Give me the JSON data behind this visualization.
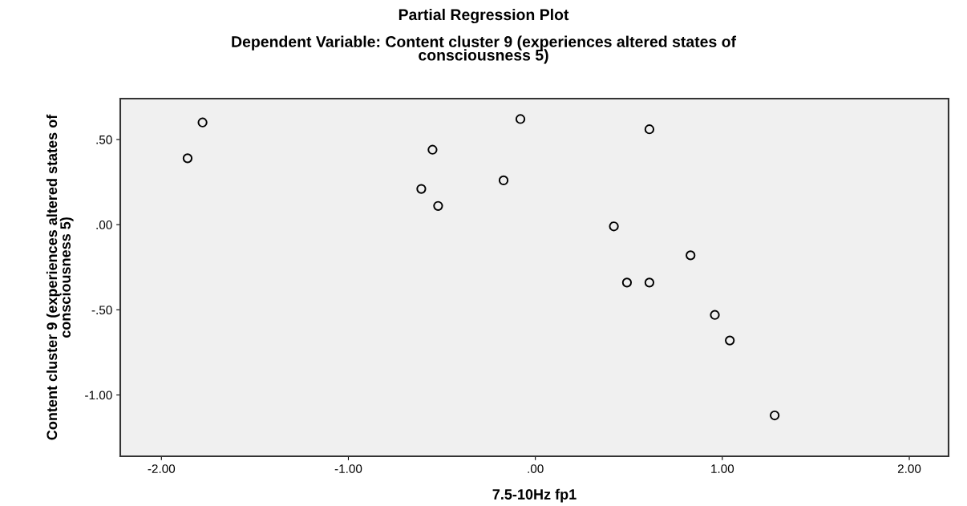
{
  "chart_data": {
    "type": "scatter",
    "title": "Partial Regression Plot",
    "subtitle": "Dependent Variable: Content cluster 9 (experiences altered states of\nconsciousness 5)",
    "xlabel": "7.5-10Hz fp1",
    "ylabel": "Content cluster 9 (experiences altered states of\nconsciousness 5)",
    "x": [
      -1.78,
      -1.86,
      -0.55,
      -0.61,
      -0.52,
      -0.17,
      -0.08,
      0.61,
      0.42,
      0.83,
      0.49,
      0.61,
      0.96,
      1.04,
      1.28
    ],
    "values": [
      0.6,
      0.39,
      0.44,
      0.21,
      0.11,
      0.26,
      0.62,
      0.56,
      -0.01,
      -0.18,
      -0.34,
      -0.34,
      -0.53,
      -0.68,
      -1.12
    ],
    "color": "#000000",
    "marker": "circle",
    "xlim": [
      -2.22,
      2.21
    ],
    "ylim": [
      -1.36,
      0.74
    ],
    "xticks": [
      {
        "value": -2,
        "label": "-2.00"
      },
      {
        "value": -1,
        "label": "-1.00"
      },
      {
        "value": 0,
        "label": ".00"
      },
      {
        "value": 1,
        "label": "1.00"
      },
      {
        "value": 2,
        "label": "2.00"
      }
    ],
    "yticks": [
      {
        "value": -1,
        "label": "-1.00"
      },
      {
        "value": -0.5,
        "label": "-.50"
      },
      {
        "value": 0,
        "label": ".00"
      },
      {
        "value": 0.5,
        "label": ".50"
      }
    ],
    "grid": false
  }
}
